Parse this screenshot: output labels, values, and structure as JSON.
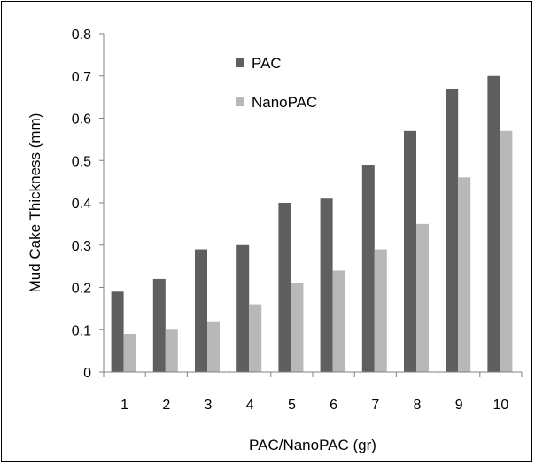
{
  "chart_data": {
    "type": "bar",
    "title": "",
    "xlabel": "PAC/NanoPAC (gr)",
    "ylabel": "Mud Cake Thickness (mm)",
    "categories": [
      "1",
      "2",
      "3",
      "4",
      "5",
      "6",
      "7",
      "8",
      "9",
      "10"
    ],
    "series": [
      {
        "name": "PAC",
        "color": "#5f5f5f",
        "values": [
          0.19,
          0.22,
          0.29,
          0.3,
          0.4,
          0.41,
          0.49,
          0.57,
          0.67,
          0.7
        ]
      },
      {
        "name": "NanoPAC",
        "color": "#b8b8b8",
        "values": [
          0.09,
          0.1,
          0.12,
          0.16,
          0.21,
          0.24,
          0.29,
          0.35,
          0.46,
          0.57
        ]
      }
    ],
    "ylim": [
      0,
      0.8
    ],
    "yticks": [
      "0",
      "0.1",
      "0.2",
      "0.3",
      "0.4",
      "0.5",
      "0.6",
      "0.7",
      "0.8"
    ],
    "grid": false,
    "legend_position": "top-center"
  }
}
